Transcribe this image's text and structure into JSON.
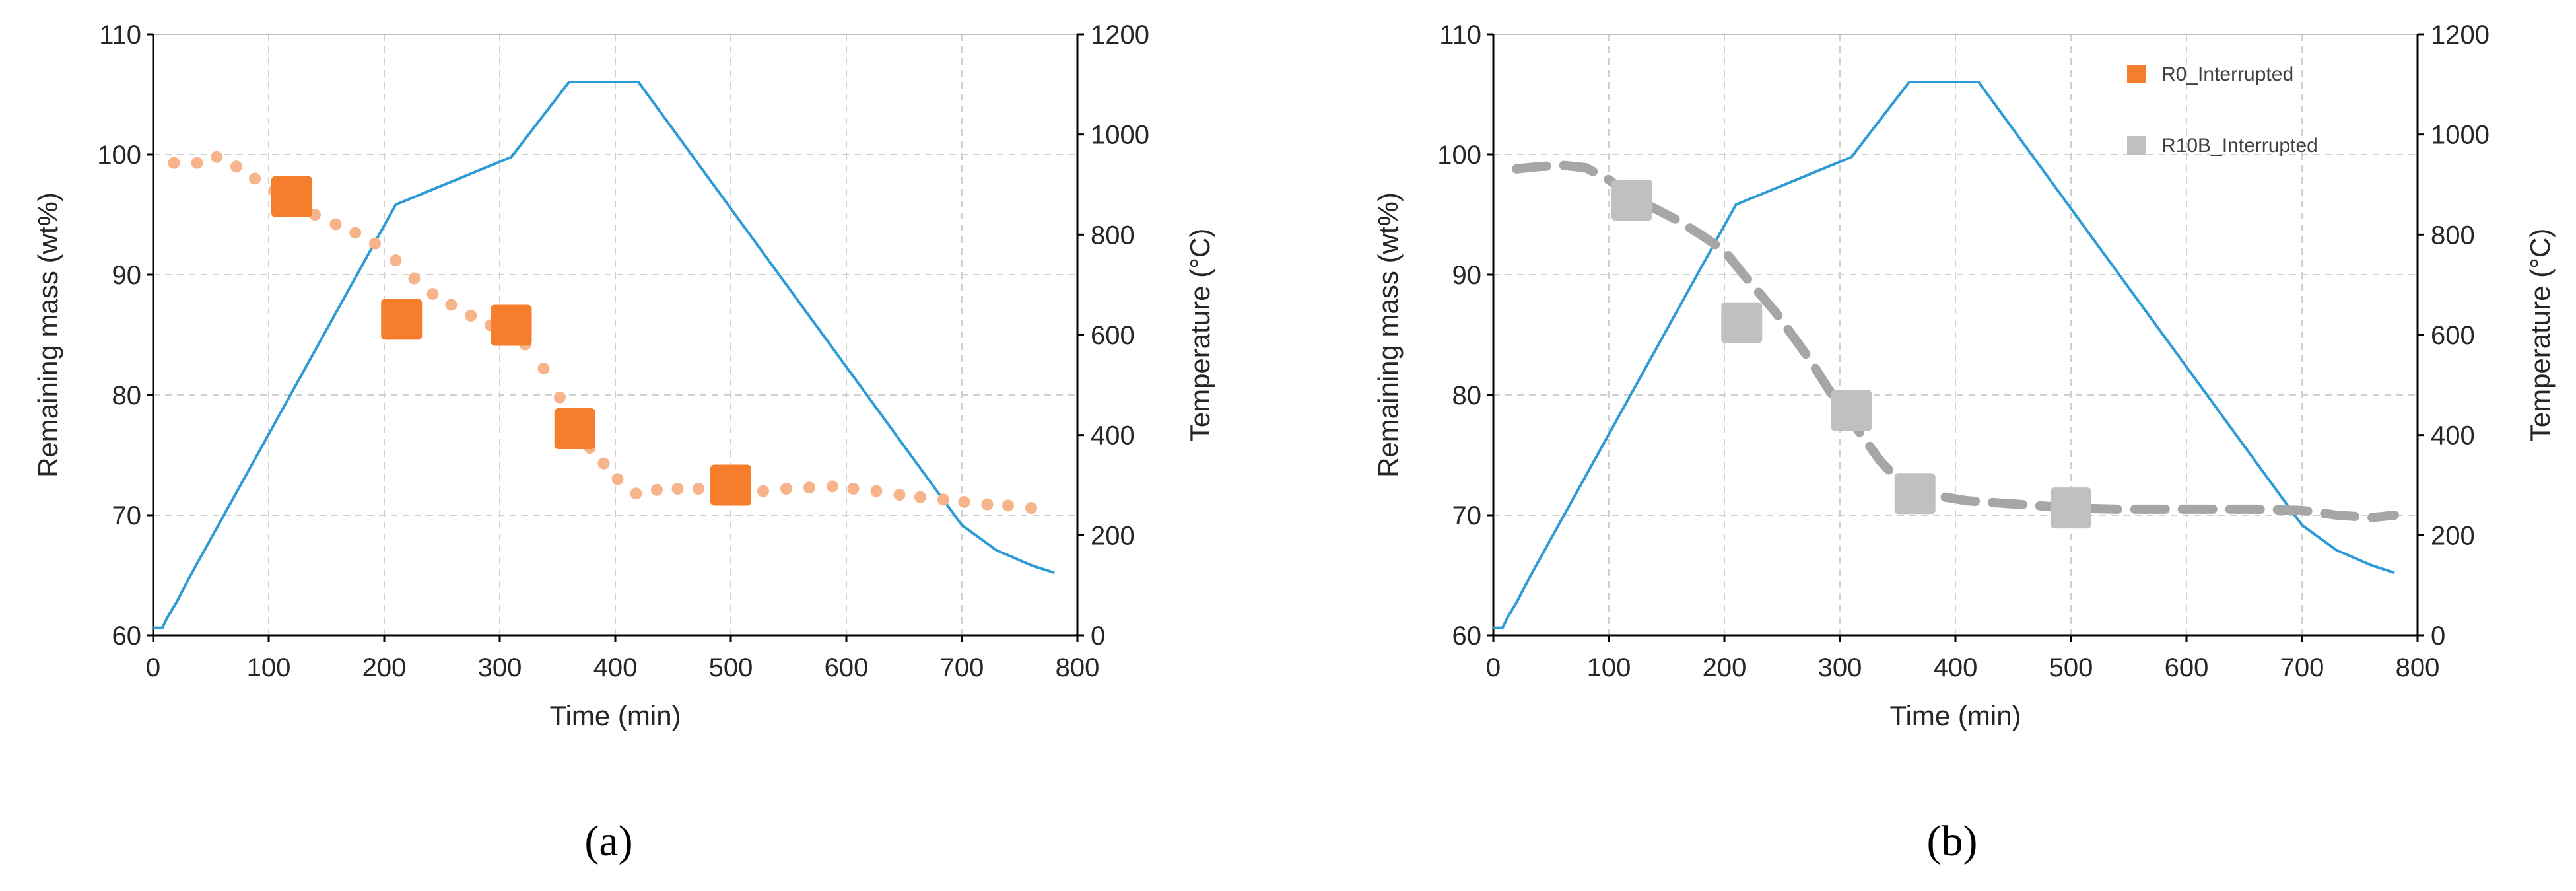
{
  "figure": {
    "panel_labels": [
      "(a)",
      "(b)"
    ]
  },
  "chart_data": [
    {
      "type": "line",
      "panel": "(a)",
      "xlabel": "Time (min)",
      "ylabel": "Remaining mass (wt%)",
      "y2label": "Temperature (°C)",
      "xlim": [
        0,
        800
      ],
      "ylim": [
        60,
        110
      ],
      "y2lim": [
        0,
        1200
      ],
      "xticks": [
        0,
        100,
        200,
        300,
        400,
        500,
        600,
        700,
        800
      ],
      "yticks": [
        60,
        70,
        80,
        90,
        100,
        110
      ],
      "y2ticks": [
        0,
        200,
        400,
        600,
        800,
        1000,
        1200
      ],
      "grid": true,
      "legend": [],
      "series": [
        {
          "axis": "y2",
          "style": "line",
          "color": "#2e9bd6",
          "x": [
            0,
            8,
            12,
            20,
            30,
            210,
            310,
            360,
            380,
            420,
            700,
            730,
            760,
            780
          ],
          "y": [
            15,
            15,
            35,
            65,
            110,
            860,
            955,
            1105,
            1105,
            1105,
            220,
            170,
            140,
            125
          ]
        },
        {
          "axis": "y",
          "style": "dots",
          "color": "#f7b48a",
          "x": [
            18,
            38,
            55,
            72,
            88,
            105,
            120,
            140,
            158,
            175,
            192,
            210,
            226,
            242,
            258,
            275,
            292,
            308,
            322,
            338,
            352,
            365,
            378,
            390,
            402,
            418,
            436,
            454,
            472,
            490,
            508,
            528,
            548,
            568,
            588,
            606,
            626,
            646,
            664,
            684,
            702,
            722,
            740,
            760
          ],
          "y": [
            99.3,
            99.3,
            99.8,
            99.0,
            98.0,
            97.0,
            96.0,
            95.0,
            94.2,
            93.5,
            92.6,
            91.2,
            89.7,
            88.4,
            87.5,
            86.6,
            85.8,
            85.0,
            84.2,
            82.2,
            79.8,
            77.2,
            75.6,
            74.3,
            73.0,
            71.8,
            72.1,
            72.2,
            72.2,
            72.0,
            72.2,
            72.0,
            72.2,
            72.3,
            72.4,
            72.2,
            72.0,
            71.7,
            71.5,
            71.3,
            71.1,
            70.9,
            70.8,
            70.6
          ]
        },
        {
          "axis": "y",
          "style": "square",
          "color": "#f47e2b",
          "name": "R0_Interrupted",
          "x": [
            120,
            215,
            310,
            365,
            500
          ],
          "y": [
            96.5,
            86.3,
            85.8,
            77.2,
            72.5
          ]
        }
      ]
    },
    {
      "type": "line",
      "panel": "(b)",
      "xlabel": "Time (min)",
      "ylabel": "Remaining mass (wt%)",
      "y2label": "Temperature (°C)",
      "xlim": [
        0,
        800
      ],
      "ylim": [
        60,
        110
      ],
      "y2lim": [
        0,
        1200
      ],
      "xticks": [
        0,
        100,
        200,
        300,
        400,
        500,
        600,
        700,
        800
      ],
      "yticks": [
        60,
        70,
        80,
        90,
        100,
        110
      ],
      "y2ticks": [
        0,
        200,
        400,
        600,
        800,
        1000,
        1200
      ],
      "grid": true,
      "legend": [
        {
          "label": "R0_Interrupted",
          "color": "#f47e2b"
        },
        {
          "label": "R10B_Interrupted",
          "color": "#c0c0c0"
        }
      ],
      "series": [
        {
          "axis": "y2",
          "style": "line",
          "color": "#2e9bd6",
          "x": [
            0,
            8,
            12,
            20,
            30,
            210,
            310,
            360,
            380,
            420,
            700,
            730,
            760,
            780
          ],
          "y": [
            15,
            15,
            35,
            65,
            110,
            860,
            955,
            1105,
            1105,
            1105,
            220,
            170,
            140,
            125
          ]
        },
        {
          "axis": "y",
          "style": "dashed",
          "color": "#a6a6a6",
          "x": [
            20,
            40,
            60,
            80,
            100,
            120,
            140,
            160,
            180,
            200,
            215,
            230,
            245,
            260,
            275,
            290,
            305,
            320,
            335,
            350,
            365,
            385,
            410,
            440,
            470,
            500,
            540,
            580,
            620,
            660,
            700,
            730,
            760,
            780
          ],
          "y": [
            98.8,
            99.0,
            99.1,
            98.9,
            97.9,
            96.5,
            95.5,
            94.5,
            93.3,
            92.0,
            90.2,
            88.5,
            86.8,
            84.8,
            82.8,
            80.5,
            78.5,
            76.5,
            74.5,
            73.0,
            72.0,
            71.6,
            71.2,
            71.0,
            70.8,
            70.6,
            70.5,
            70.5,
            70.5,
            70.5,
            70.4,
            70.0,
            69.8,
            70.0
          ]
        },
        {
          "axis": "y",
          "style": "square",
          "color": "#c0c0c0",
          "name": "R10B_Interrupted",
          "x": [
            120,
            215,
            310,
            365,
            500
          ],
          "y": [
            96.2,
            86.0,
            78.7,
            71.8,
            70.6
          ]
        }
      ]
    }
  ]
}
